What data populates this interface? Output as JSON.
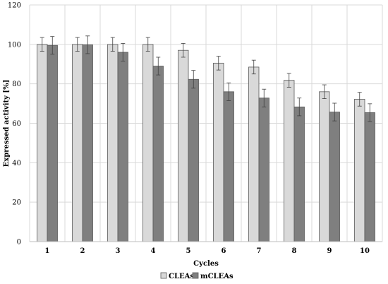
{
  "chart_data": {
    "type": "bar",
    "title": "",
    "xlabel": "Cycles",
    "ylabel": "Expressed activity [%]",
    "categories": [
      "1",
      "2",
      "3",
      "4",
      "5",
      "6",
      "7",
      "8",
      "9",
      "10"
    ],
    "ylim": [
      0,
      120
    ],
    "yticks": [
      "0",
      "20",
      "40",
      "60",
      "80",
      "100",
      "120"
    ],
    "grid": true,
    "legend_position": "bottom",
    "series": [
      {
        "name": "CLEAs",
        "color": "#d9d9d9",
        "values": [
          100,
          100,
          100,
          100,
          97,
          90.5,
          88.5,
          81.8,
          76,
          72.2
        ],
        "errors": [
          3.5,
          3.5,
          3.5,
          3.5,
          3.5,
          3.5,
          3.5,
          3.5,
          3.5,
          3.5
        ]
      },
      {
        "name": "mCLEAs",
        "color": "#7f7f7f",
        "values": [
          99.5,
          99.8,
          96,
          89,
          82.3,
          76,
          72.8,
          68.3,
          65.7,
          65.4
        ],
        "errors": [
          4.5,
          4.5,
          4.5,
          4.5,
          4.5,
          4.5,
          4.5,
          4.5,
          4.5,
          4.5
        ]
      }
    ]
  }
}
